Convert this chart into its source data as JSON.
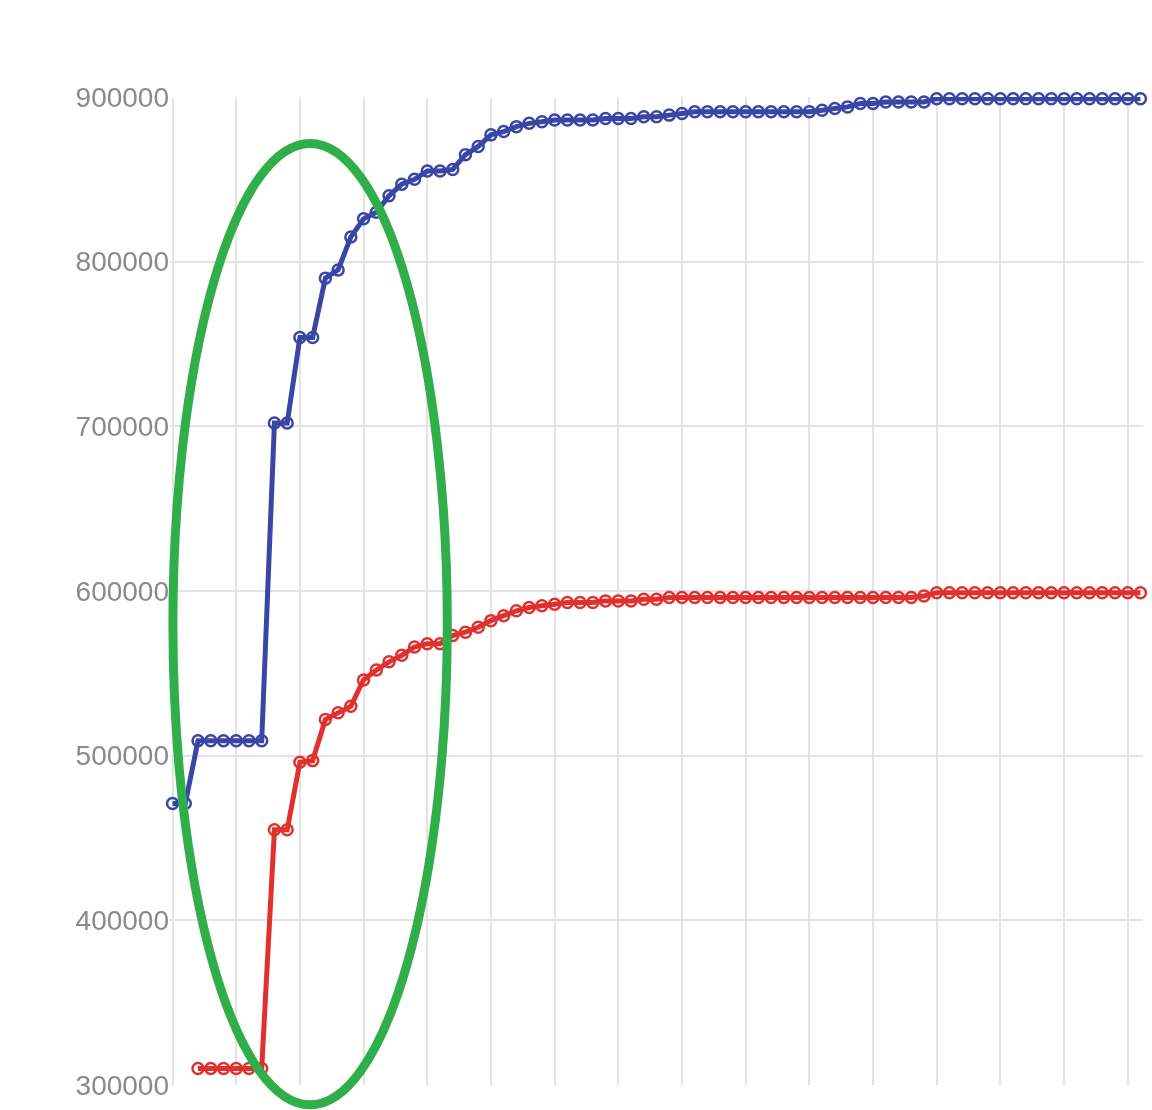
{
  "chart_data": {
    "type": "line",
    "categories": [
      null,
      null,
      null,
      null,
      null,
      null,
      null,
      null,
      null,
      null,
      null,
      null,
      null,
      null,
      null,
      null,
      null,
      null,
      null,
      null,
      null,
      null,
      null,
      null,
      null,
      null,
      null,
      null,
      null,
      null,
      null,
      null,
      null,
      null,
      null,
      null,
      null,
      null,
      null,
      null,
      null,
      null,
      null,
      null,
      null,
      null,
      null,
      null,
      null,
      null,
      null,
      null,
      null,
      null,
      null,
      null,
      null,
      null,
      null,
      null,
      null,
      null,
      null,
      null,
      null,
      null,
      null,
      null,
      null,
      null,
      null,
      null,
      null,
      null,
      null,
      null,
      null
    ],
    "series": [
      {
        "color": "#3a45a5",
        "values": [
          471000,
          471000,
          509000,
          509000,
          509000,
          509000,
          509000,
          509000,
          702000,
          702000,
          754000,
          754000,
          790000,
          795000,
          815000,
          826000,
          830000,
          840000,
          847000,
          850000,
          855000,
          855000,
          856000,
          865000,
          870000,
          877000,
          879000,
          882000,
          884000,
          885000,
          886000,
          886000,
          886000,
          886000,
          887000,
          887000,
          887000,
          888000,
          888000,
          889000,
          890000,
          891000,
          891000,
          891000,
          891000,
          891000,
          891000,
          891000,
          891000,
          891000,
          891000,
          892000,
          893000,
          894000,
          896000,
          896000,
          897000,
          897000,
          897000,
          897000,
          899000,
          899000,
          899000,
          899000,
          899000,
          899000,
          899000,
          899000,
          899000,
          899000,
          899000,
          899000,
          899000,
          899000,
          899000,
          899000,
          899000
        ]
      },
      {
        "color": "#e0312f",
        "values": [
          null,
          null,
          310000,
          310000,
          310000,
          310000,
          310000,
          310000,
          455000,
          455000,
          496000,
          497000,
          522000,
          526000,
          530000,
          546000,
          552000,
          557000,
          561000,
          566000,
          568000,
          568000,
          573000,
          575000,
          578000,
          582000,
          585000,
          588000,
          590000,
          591000,
          592000,
          593000,
          593000,
          593000,
          594000,
          594000,
          594000,
          595000,
          595000,
          596000,
          596000,
          596000,
          596000,
          596000,
          596000,
          596000,
          596000,
          596000,
          596000,
          596000,
          596000,
          596000,
          596000,
          596000,
          596000,
          596000,
          596000,
          596000,
          596000,
          597000,
          599000,
          599000,
          599000,
          599000,
          599000,
          599000,
          599000,
          599000,
          599000,
          599000,
          599000,
          599000,
          599000,
          599000,
          599000,
          599000,
          599000
        ]
      }
    ],
    "ylim": [
      300000,
      900000
    ],
    "yticks": [
      300000,
      400000,
      500000,
      600000,
      700000,
      800000,
      900000
    ],
    "grid": true,
    "marker": "circle",
    "line_style": "solid",
    "tick_labels": "y"
  }
}
